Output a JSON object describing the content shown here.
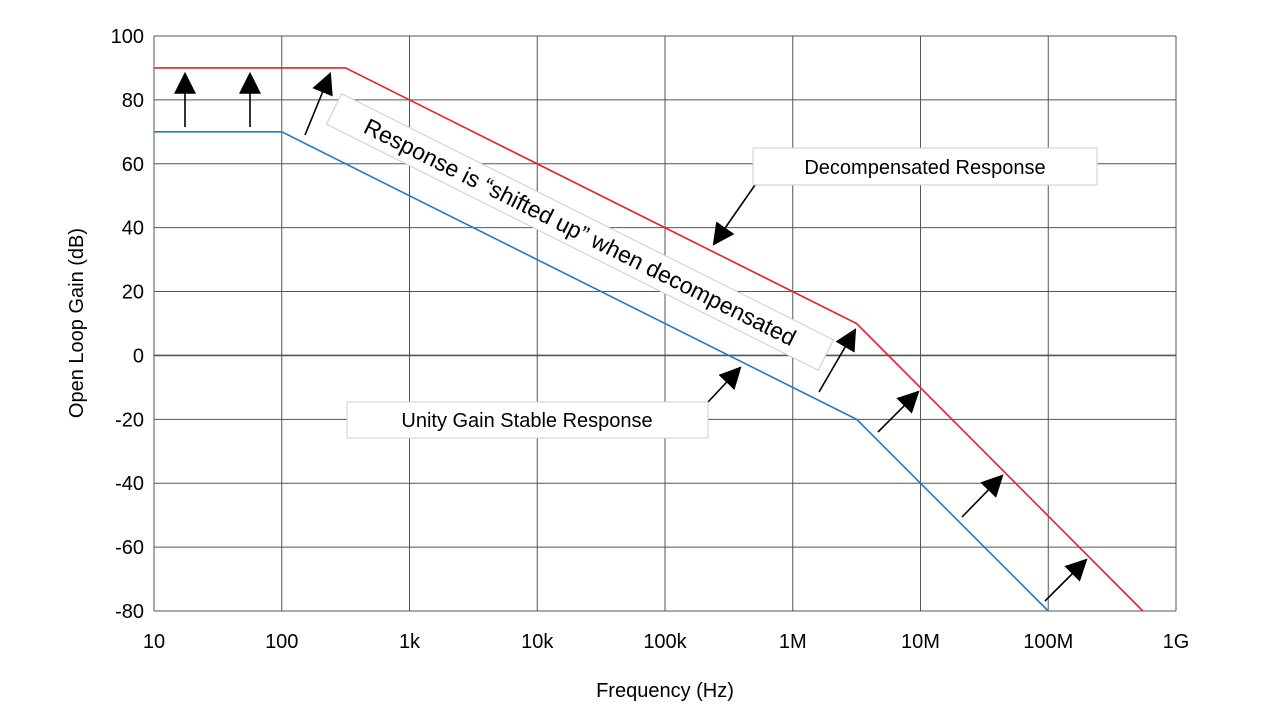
{
  "chart_data": {
    "type": "line",
    "xlabel": "Frequency (Hz)",
    "ylabel": "Open Loop Gain (dB)",
    "x_scale": "log",
    "xlim": [
      10,
      1000000000
    ],
    "ylim": [
      -80,
      100
    ],
    "grid": true,
    "x_ticks": [
      {
        "value": 10,
        "label": "10"
      },
      {
        "value": 100,
        "label": "100"
      },
      {
        "value": 1000,
        "label": "1k"
      },
      {
        "value": 10000,
        "label": "10k"
      },
      {
        "value": 100000,
        "label": "100k"
      },
      {
        "value": 1000000,
        "label": "1M"
      },
      {
        "value": 10000000,
        "label": "10M"
      },
      {
        "value": 100000000,
        "label": "100M"
      },
      {
        "value": 1000000000,
        "label": "1G"
      }
    ],
    "y_ticks": [
      100,
      80,
      60,
      40,
      20,
      0,
      -20,
      -40,
      -60,
      -80
    ],
    "series": [
      {
        "color": "#e8202a",
        "points": [
          [
            10,
            90
          ],
          [
            316,
            90
          ],
          [
            3160000,
            10
          ],
          [
            550000000,
            -80
          ]
        ]
      },
      {
        "color": "#1f7ac4",
        "points": [
          [
            10,
            70
          ],
          [
            100,
            70
          ],
          [
            3160000,
            -20
          ],
          [
            100000000,
            -80
          ]
        ]
      }
    ],
    "annotations": {
      "decompensated": "Decompensated Response",
      "unity": "Unity Gain Stable Response",
      "shifted": "Response is “shifted up” when decompensated"
    }
  }
}
